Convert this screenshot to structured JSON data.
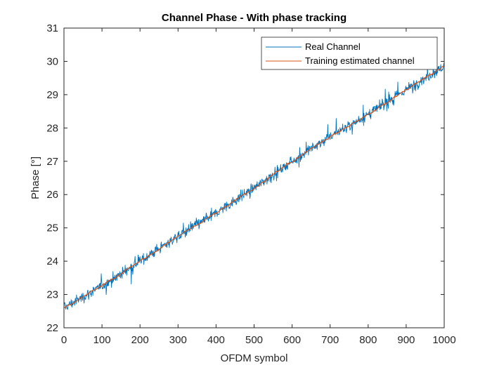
{
  "chart_data": {
    "type": "line",
    "title": "Channel Phase - With phase tracking",
    "xlabel": "OFDM symbol",
    "ylabel": "Phase [°]",
    "xlim": [
      0,
      1000
    ],
    "ylim": [
      22,
      31
    ],
    "xticks": [
      0,
      100,
      200,
      300,
      400,
      500,
      600,
      700,
      800,
      900,
      1000
    ],
    "yticks": [
      22,
      23,
      24,
      25,
      26,
      27,
      28,
      29,
      30,
      31
    ],
    "grid": false,
    "legend_position": "top-right",
    "series": [
      {
        "name": "Real Channel",
        "color": "#0072bd",
        "noise_amplitude_deg": 0.25,
        "x": [
          0,
          100,
          200,
          300,
          400,
          500,
          600,
          700,
          800,
          900,
          1000
        ],
        "y": [
          22.6,
          23.25,
          24.0,
          24.75,
          25.45,
          26.2,
          27.0,
          27.75,
          28.4,
          29.15,
          29.85
        ]
      },
      {
        "name": "Training estimated channel",
        "color": "#d95319",
        "x": [
          0,
          100,
          200,
          300,
          400,
          500,
          600,
          700,
          800,
          900,
          1000
        ],
        "y": [
          22.6,
          23.25,
          24.0,
          24.75,
          25.45,
          26.2,
          27.0,
          27.75,
          28.4,
          29.15,
          29.85
        ]
      }
    ]
  }
}
